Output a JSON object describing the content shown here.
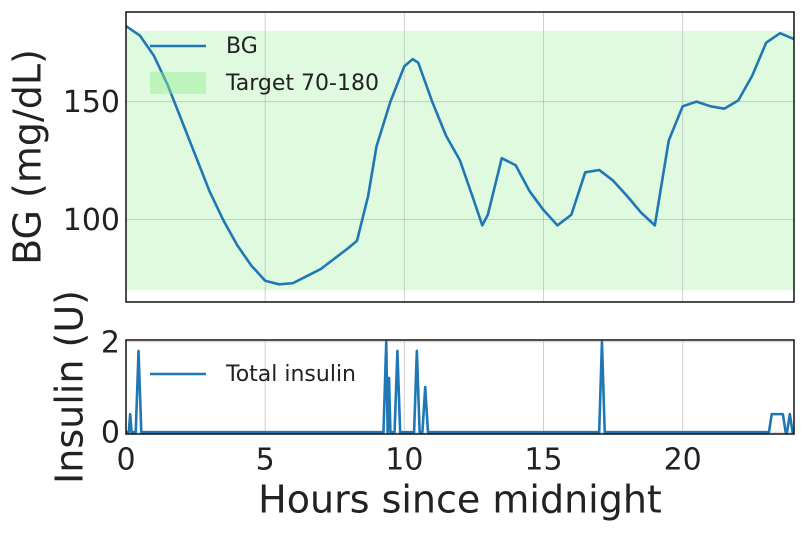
{
  "chart_data": [
    {
      "type": "line",
      "ylabel": "BG (mg/dL)",
      "x": [
        0,
        0.5,
        1,
        1.5,
        2,
        2.5,
        3,
        3.5,
        4,
        4.5,
        5,
        5.5,
        6,
        6.5,
        7,
        7.5,
        8,
        8.3,
        8.7,
        9,
        9.5,
        10,
        10.3,
        10.5,
        11,
        11.5,
        12,
        12.5,
        12.8,
        13,
        13.5,
        14,
        14.5,
        15,
        15.5,
        16,
        16.5,
        17,
        17.5,
        18,
        18.5,
        19,
        19.5,
        20,
        20.5,
        21,
        21.5,
        22,
        22.5,
        23,
        23.5,
        24
      ],
      "series": [
        {
          "name": "BG",
          "color": "#1f77b4",
          "values": [
            182,
            178,
            169.5,
            157,
            142,
            127,
            112,
            99.6,
            89,
            80.5,
            74,
            72.5,
            73,
            76,
            79,
            83.5,
            88,
            91,
            110,
            131,
            150,
            165,
            168,
            166.5,
            150,
            135.5,
            125,
            108,
            97.5,
            102,
            126,
            123,
            112,
            104,
            97.5,
            102,
            120,
            121,
            116.5,
            110,
            103,
            97.5,
            133.5,
            148,
            150,
            148,
            147,
            150.5,
            161,
            175,
            179,
            176.5
          ]
        }
      ],
      "bands": [
        {
          "name": "Target 70-180",
          "from": 70,
          "to": 180,
          "color": "#90ee90"
        }
      ],
      "xlim": [
        0,
        24
      ],
      "xticks": [
        0,
        5,
        10,
        15,
        20
      ],
      "ylim": [
        65,
        188
      ],
      "yticks": [
        100,
        150
      ],
      "grid": true,
      "legend": "upper left"
    },
    {
      "type": "line",
      "ylabel": "Insulin (U)",
      "xlabel": "Hours since midnight",
      "x": [
        0,
        0.1,
        0.15,
        0.2,
        0.35,
        0.45,
        0.55,
        9.25,
        9.35,
        9.4,
        9.45,
        9.5,
        9.65,
        9.75,
        9.85,
        10.35,
        10.45,
        10.55,
        10.65,
        10.75,
        10.85,
        17.0,
        17.1,
        17.2,
        23.1,
        23.2,
        23.6,
        23.7,
        23.75,
        23.85,
        23.95,
        24
      ],
      "series": [
        {
          "name": "Total insulin",
          "color": "#1f77b4",
          "values": [
            0,
            0,
            0.4,
            0,
            0,
            1.8,
            0,
            0,
            2.0,
            0,
            1.2,
            0,
            0,
            1.8,
            0,
            0,
            1.8,
            0,
            0,
            1.0,
            0,
            0,
            2.0,
            0,
            0,
            0.4,
            0.4,
            0,
            0,
            0.4,
            0,
            0
          ]
        }
      ],
      "xlim": [
        0,
        24
      ],
      "xticks": [
        0,
        5,
        10,
        15,
        20
      ],
      "ylim": [
        -0.04,
        2.04
      ],
      "yticks": [
        0,
        2
      ],
      "grid": true,
      "legend": "upper left"
    }
  ]
}
